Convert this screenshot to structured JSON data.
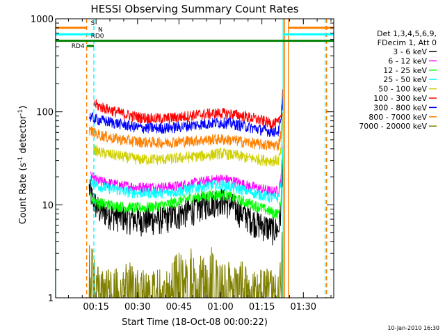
{
  "chart_data": {
    "type": "line",
    "title": "HESSI Observing Summary Count Rates",
    "xlabel": "Start Time (18-Oct-08 00:00:22)",
    "ylabel_parts": [
      "Count Rate (s",
      "-1",
      " detector",
      "-1",
      ")"
    ],
    "y_scale": "log",
    "ylim": [
      1,
      1000
    ],
    "x_unit": "minutes after 00:00 UT",
    "xlim": [
      0.37,
      101
    ],
    "x_ticks": [
      {
        "value": 15,
        "label": "00:15"
      },
      {
        "value": 30,
        "label": "00:30"
      },
      {
        "value": 45,
        "label": "00:45"
      },
      {
        "value": 60,
        "label": "01:00"
      },
      {
        "value": 75,
        "label": "01:15"
      },
      {
        "value": 90,
        "label": "01:30"
      }
    ],
    "y_ticks": [
      {
        "value": 1,
        "label": "1"
      },
      {
        "value": 10,
        "label": "10"
      },
      {
        "value": 100,
        "label": "100"
      },
      {
        "value": 1000,
        "label": "1000"
      }
    ],
    "legend": {
      "placement": "right",
      "header": [
        "Det 1,3,4,5,6,9,",
        "FDecim 1, Att 0"
      ]
    },
    "series": [
      {
        "name": "3 - 6 keV",
        "color": "#000000",
        "x": [
          12.5,
          14,
          16,
          18,
          21,
          25,
          30,
          35,
          40,
          45,
          50,
          55,
          60,
          63,
          66,
          70,
          73,
          76,
          79,
          81,
          82,
          82.6
        ],
        "y": [
          15,
          11,
          9,
          8.5,
          8,
          7.5,
          7,
          7,
          7.3,
          8,
          9,
          10.5,
          11.5,
          10.5,
          9,
          7.5,
          6.5,
          6,
          5.5,
          5.5,
          9,
          35
        ]
      },
      {
        "name": "6 - 12 keV",
        "color": "#ff00ff",
        "x": [
          13,
          16,
          20,
          25,
          30,
          35,
          40,
          45,
          50,
          55,
          60,
          63,
          66,
          70,
          74,
          78,
          81,
          82,
          82.6
        ],
        "y": [
          20,
          18,
          17,
          16,
          15.5,
          15.5,
          15.5,
          16,
          17,
          18,
          19,
          18.5,
          17.5,
          16,
          15,
          14,
          14,
          20,
          45
        ]
      },
      {
        "name": "12 - 25 keV",
        "color": "#00ff00",
        "x": [
          13,
          16,
          20,
          25,
          30,
          35,
          40,
          45,
          50,
          55,
          60,
          63,
          66,
          70,
          74,
          78,
          81,
          82,
          82.6
        ],
        "y": [
          12,
          10.5,
          10,
          9.5,
          9.3,
          9.5,
          10,
          11,
          12,
          12.5,
          13,
          12.5,
          11.5,
          10.5,
          9.5,
          8.5,
          8,
          12,
          35
        ]
      },
      {
        "name": "25 - 50 keV",
        "color": "#00ffff",
        "x": [
          13,
          16,
          20,
          25,
          30,
          35,
          40,
          45,
          50,
          55,
          60,
          63,
          66,
          70,
          74,
          78,
          81,
          82,
          82.6
        ],
        "y": [
          18,
          16,
          15,
          14,
          13.5,
          13.5,
          13.5,
          14,
          15,
          16,
          16.5,
          16,
          15,
          14,
          13,
          12,
          12,
          18,
          40
        ]
      },
      {
        "name": "50 - 100 keV",
        "color": "#d0d000",
        "x": [
          14,
          16,
          20,
          25,
          30,
          35,
          40,
          45,
          50,
          55,
          60,
          63,
          66,
          70,
          74,
          78,
          81,
          82,
          82.6
        ],
        "y": [
          40,
          37,
          35,
          33,
          31,
          31,
          31,
          32,
          33,
          34,
          36,
          35,
          34,
          32,
          31,
          30,
          30,
          38,
          80
        ]
      },
      {
        "name": "100 - 300 keV",
        "color": "#ff0000",
        "x": [
          14,
          16,
          20,
          25,
          30,
          35,
          40,
          45,
          50,
          55,
          60,
          63,
          66,
          70,
          74,
          78,
          81,
          82,
          82.6
        ],
        "y": [
          125,
          115,
          105,
          95,
          88,
          85,
          85,
          88,
          92,
          95,
          97,
          96,
          93,
          88,
          82,
          76,
          75,
          95,
          180
        ]
      },
      {
        "name": "300 - 800 keV",
        "color": "#0000ff",
        "x": [
          12.5,
          14,
          16,
          20,
          25,
          30,
          35,
          40,
          45,
          50,
          55,
          60,
          63,
          66,
          70,
          74,
          78,
          81,
          82,
          82.6
        ],
        "y": [
          90,
          85,
          82,
          78,
          73,
          68,
          67,
          67,
          69,
          72,
          75,
          77,
          76,
          73,
          69,
          65,
          62,
          62,
          80,
          150
        ]
      },
      {
        "name": "800 - 7000 keV",
        "color": "#ff8000",
        "x": [
          12.5,
          14,
          16,
          20,
          25,
          30,
          35,
          40,
          45,
          50,
          55,
          60,
          63,
          66,
          70,
          74,
          78,
          81,
          82,
          82.6
        ],
        "y": [
          65,
          60,
          57,
          53,
          50,
          48,
          47,
          47,
          48,
          49,
          50,
          51,
          50,
          49,
          47,
          45,
          44,
          44,
          60,
          110
        ]
      },
      {
        "name": "7000 - 20000 keV",
        "color": "#808000",
        "x": [
          12.5,
          13,
          13.8,
          14.5,
          16,
          20,
          25,
          27,
          29,
          31,
          36,
          41,
          43,
          45,
          47,
          49,
          51,
          53,
          55,
          57,
          59,
          62,
          65,
          68,
          70,
          72,
          74,
          76,
          78,
          80,
          81,
          82,
          82.6
        ],
        "y": [
          3,
          2,
          2.8,
          2,
          1.6,
          1.4,
          1.6,
          1.8,
          1.5,
          1.4,
          1.5,
          1.4,
          1.8,
          2.5,
          1.6,
          2.8,
          1.5,
          2.3,
          1.6,
          2.8,
          1.6,
          2,
          1.5,
          1.8,
          1.5,
          1.6,
          1.4,
          1.6,
          1.4,
          1.5,
          1.4,
          2,
          5
        ]
      }
    ],
    "vertical_markers": [
      {
        "x": 0.37,
        "color": "#00ffff",
        "dash": false
      },
      {
        "x": 11.6,
        "color": "#ff8000",
        "dash": true
      },
      {
        "x": 14.2,
        "color": "#00ffff",
        "dash": true
      },
      {
        "x": 82.7,
        "color": "#00ffff",
        "dash": false
      },
      {
        "x": 83.2,
        "color": "#ff8000",
        "dash": false
      },
      {
        "x": 84.6,
        "color": "#ff8000",
        "dash": false
      },
      {
        "x": 97.9,
        "color": "#00ffff",
        "dash": true
      },
      {
        "x": 98.4,
        "color": "#ff8000",
        "dash": true
      }
    ],
    "flag_bars": [
      {
        "label": "S",
        "color": "#ff8000",
        "y": 800,
        "segments": [
          [
            0.37,
            11.6
          ],
          [
            84.6,
            101
          ]
        ]
      },
      {
        "label": "N",
        "color": "#00ffff",
        "y": 680,
        "segments": [
          [
            0.37,
            14.2
          ],
          [
            82.7,
            101
          ]
        ]
      },
      {
        "label": "RD0",
        "color": "#008000",
        "y": 580,
        "segments": [
          [
            0.37,
            101
          ]
        ]
      },
      {
        "label": "RD4",
        "color": "#008000",
        "y": 510,
        "segments": [
          [
            11.6,
            14.2
          ]
        ]
      }
    ]
  },
  "footer": {
    "timestamp": "10-Jan-2010 16:30"
  }
}
